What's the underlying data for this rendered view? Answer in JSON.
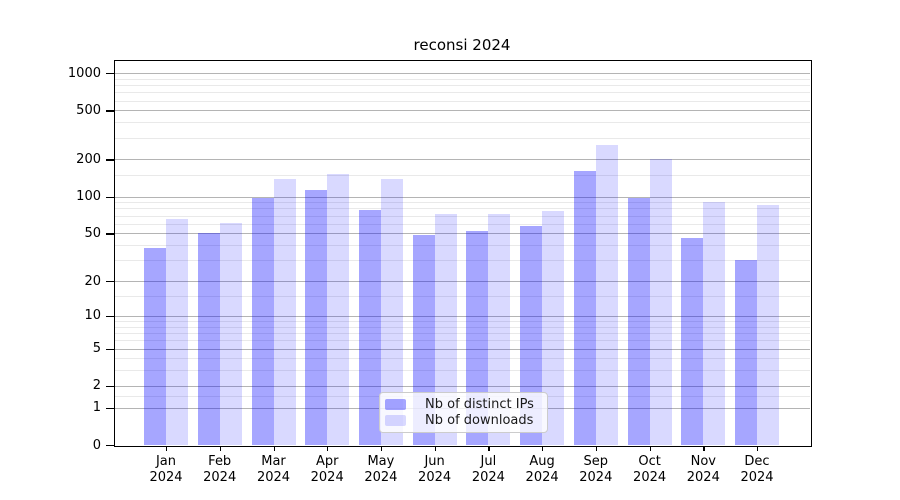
{
  "title": "reconsi 2024",
  "chart_data": {
    "type": "bar",
    "title": "reconsi 2024",
    "xlabel": "",
    "ylabel": "",
    "y_scale": "symlog (position proportional to ln(1+value))",
    "ylim": [
      0,
      1326
    ],
    "grid": true,
    "legend_position": "lower center inside plot",
    "categories": [
      "Jan",
      "Feb",
      "Mar",
      "Apr",
      "May",
      "Jun",
      "Jul",
      "Aug",
      "Sep",
      "Oct",
      "Nov",
      "Dec"
    ],
    "category_year": "2024",
    "y_ticks": [
      0,
      1,
      2,
      5,
      10,
      20,
      50,
      100,
      200,
      500,
      1000
    ],
    "y_minor_ticks": [
      1.5,
      3,
      4,
      6,
      7,
      8,
      9,
      15,
      30,
      40,
      60,
      70,
      80,
      90,
      150,
      300,
      400,
      600,
      700,
      800,
      900
    ],
    "series": [
      {
        "name": "Nb of distinct IPs",
        "color": "rgba(0,0,255,0.35)",
        "values": [
          38,
          50,
          97,
          113,
          78,
          48,
          52,
          57,
          162,
          97,
          46,
          30
        ]
      },
      {
        "name": "Nb of downloads",
        "color": "rgba(0,0,255,0.15)",
        "values": [
          66,
          61,
          140,
          153,
          140,
          72,
          72,
          76,
          262,
          200,
          91,
          85
        ]
      }
    ]
  },
  "colors": {
    "major_gridline": "#b4b4b4",
    "minor_gridline": "#e9e9e9",
    "axis": "#000000",
    "legend_border": "#cccccc"
  }
}
